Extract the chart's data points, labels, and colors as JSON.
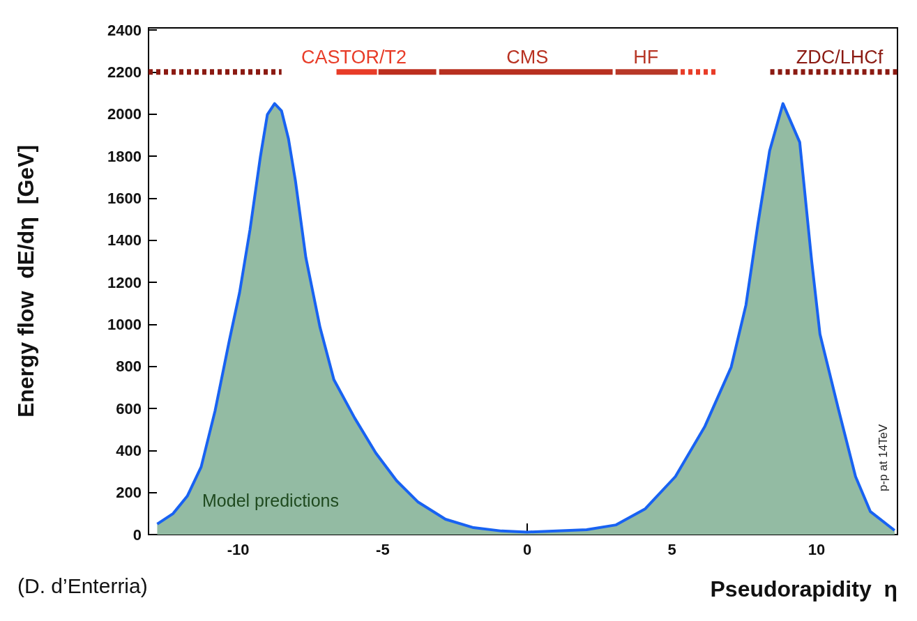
{
  "chart_data": {
    "type": "area",
    "xlabel": "Pseudorapidity  η",
    "ylabel": "Energy flow  dE/dη  [GeV]",
    "xlim": [
      -13.1,
      12.8
    ],
    "xticks": [
      -10,
      -5,
      0,
      5,
      10
    ],
    "ylim": [
      0,
      2410
    ],
    "yticks": [
      0,
      200,
      400,
      600,
      800,
      1000,
      1200,
      1400,
      1600,
      1800,
      2000,
      2200,
      2400
    ],
    "grid": false,
    "legend": false,
    "marker": "none",
    "line_style": "solid",
    "series": [
      {
        "color": "#1862f2",
        "x": [
          -12.8,
          -12.25,
          -11.76,
          -11.28,
          -10.8,
          -10.31,
          -9.95,
          -9.59,
          -9.23,
          -8.99,
          -8.74,
          -8.5,
          -8.26,
          -8.02,
          -7.66,
          -7.17,
          -6.69,
          -5.97,
          -5.24,
          -4.52,
          -3.79,
          -2.83,
          -1.86,
          -0.89,
          0,
          2.05,
          3.07,
          4.08,
          5.12,
          6.14,
          7.05,
          7.56,
          7.97,
          8.38,
          8.84,
          9.42,
          9.83,
          10.12,
          10.75,
          11.35,
          11.86,
          12.7
        ],
        "values": [
          50,
          100,
          183,
          322,
          588,
          920,
          1152,
          1451,
          1799,
          1998,
          2050,
          2015,
          1882,
          1683,
          1318,
          986,
          737,
          554,
          388,
          256,
          156,
          73,
          33,
          17,
          12,
          23,
          46,
          123,
          276,
          515,
          797,
          1092,
          1474,
          1826,
          2050,
          1866,
          1305,
          953,
          601,
          276,
          110,
          20
        ]
      },
      {
        "type": "line",
        "color": "#8b1a12",
        "line_style": "dotted",
        "x": [
          -13.1,
          -8.5
        ],
        "values": [
          2200,
          2200
        ]
      },
      {
        "type": "line",
        "name": "CASTOR/T2",
        "color": "#e83c28",
        "x": [
          -6.6,
          -6.0,
          -5.2
        ],
        "values": [
          2200,
          2200,
          2200
        ]
      },
      {
        "type": "line",
        "color": "#bc2e1e",
        "x": [
          -5.15,
          -3.15
        ],
        "values": [
          2200,
          2200
        ]
      },
      {
        "type": "line",
        "name": "CMS",
        "color": "#b83020",
        "x": [
          -3.05,
          0,
          2.95
        ],
        "values": [
          2200,
          2200,
          2200
        ]
      },
      {
        "type": "line",
        "name": "HF",
        "color": "#b83828",
        "x": [
          3.05,
          4.1,
          5.2
        ],
        "values": [
          2200,
          2200,
          2200
        ]
      },
      {
        "type": "line",
        "color": "#e83c28",
        "line_style": "dotted",
        "x": [
          5.3,
          6.6
        ],
        "values": [
          2200,
          2200
        ]
      },
      {
        "type": "line",
        "name": "ZDC/LHCf",
        "color": "#8b1a12",
        "line_style": "dotted",
        "x": [
          8.4,
          10.8,
          12.8
        ],
        "values": [
          2200,
          2200,
          2200
        ]
      }
    ],
    "annotations": [
      "Model predictions",
      "p-p at 14TeV",
      "(D. d’Enterria)"
    ]
  }
}
